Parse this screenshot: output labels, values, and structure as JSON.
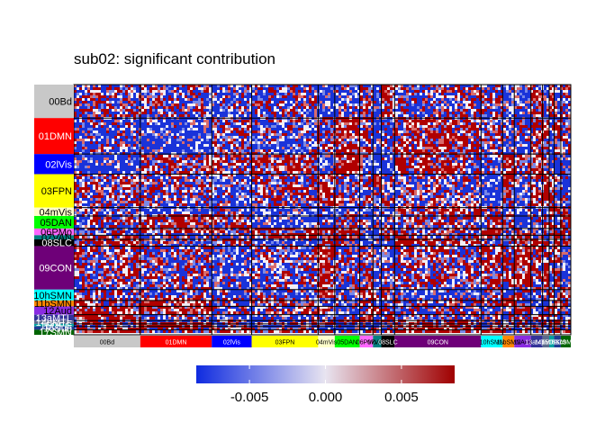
{
  "chart_data": {
    "type": "heatmap",
    "title": "sub02: significant contribution",
    "networks": [
      {
        "label": "00Bd",
        "color": "#C8C8C8",
        "size": 40,
        "text": "#000000"
      },
      {
        "label": "01DMN",
        "color": "#FF0000",
        "size": 43,
        "text": "#FFFFFF"
      },
      {
        "label": "02lVis",
        "color": "#0000FF",
        "size": 24,
        "text": "#FFFFFF"
      },
      {
        "label": "03FPN",
        "color": "#FFFF00",
        "size": 40,
        "text": "#000000"
      },
      {
        "label": "04mVis",
        "color": "#FFFFCC",
        "size": 10,
        "text": "#000000"
      },
      {
        "label": "05DAN",
        "color": "#00FF00",
        "size": 15,
        "text": "#000000"
      },
      {
        "label": "06PMo",
        "color": "#FF66FF",
        "size": 8,
        "text": "#000000"
      },
      {
        "label": "07VAN",
        "color": "#008080",
        "size": 5,
        "text": "#000000"
      },
      {
        "label": "08SLC",
        "color": "#000000",
        "size": 8,
        "text": "#FFFFFF"
      },
      {
        "label": "09CON",
        "color": "#6E0078",
        "size": 52,
        "text": "#FFFFFF"
      },
      {
        "label": "10hSMN",
        "color": "#00FFFF",
        "size": 13,
        "text": "#000000"
      },
      {
        "label": "11bSMN",
        "color": "#FF8800",
        "size": 7,
        "text": "#000000"
      },
      {
        "label": "12Aud",
        "color": "#8A2BE2",
        "size": 10,
        "text": "#000000"
      },
      {
        "label": "13aMTL",
        "color": "#333399",
        "size": 7,
        "text": "#FFFFFF"
      },
      {
        "label": "14pMTL",
        "color": "#5B6B8C",
        "size": 4,
        "text": "#FFFFFF"
      },
      {
        "label": "15OFC",
        "color": "#00A0A0",
        "size": 3,
        "text": "#FFFFFF"
      },
      {
        "label": "16Sub",
        "color": "#1F3A93",
        "size": 4,
        "text": "#FFFFFF"
      },
      {
        "label": "17SMN",
        "color": "#006400",
        "size": 6,
        "text": "#FFFFFF"
      }
    ],
    "legend": {
      "ticks": [
        -0.005,
        0.0,
        0.005
      ],
      "tick_labels": [
        "-0.005",
        "0.000",
        "0.005"
      ],
      "range": [
        -0.0085,
        0.0085
      ],
      "colors": [
        "#0F2BE0",
        "#E8E4F0",
        "#A00000"
      ],
      "placement": "bottom"
    },
    "colors": {
      "low": "#1A33D9",
      "mid": "#F2EEF5",
      "high": "#B00000"
    }
  }
}
